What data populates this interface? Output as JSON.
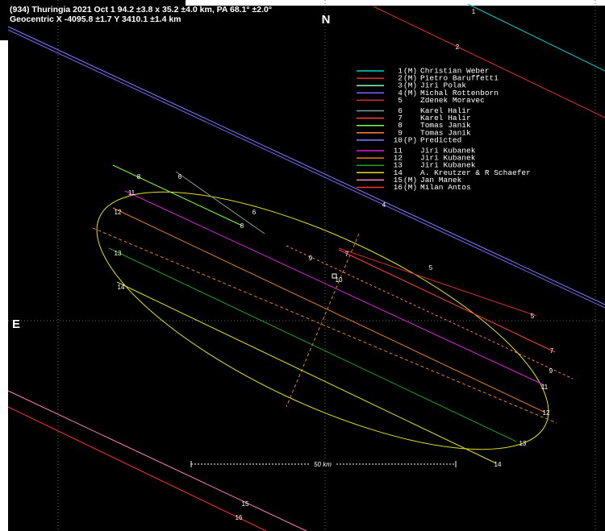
{
  "header": {
    "line1": "(934) Thuringia  2021 Oct 1  94.2 ±3.8 x 35.2 ±4.0 km, PA 68.1° ±2.0°",
    "line2": "Geocentric X  -4095.8 ±1.7  Y 3410.1 ±1.4 km"
  },
  "north": "N",
  "east": "E",
  "scale": "50 km",
  "legend": {
    "entries": [
      {
        "number": "1",
        "flag": "(M)",
        "name": "Christian Weber",
        "color": "#00d0d0"
      },
      {
        "number": "2",
        "flag": "(M)",
        "name": "Pietro Baruffetti",
        "color": "#e03030"
      },
      {
        "number": "3",
        "flag": "(M)",
        "name": "Jiri Polak",
        "color": "#80ffc0"
      },
      {
        "number": "4",
        "flag": "(M)",
        "name": "Michal Rottenborn",
        "color": "#8060ff"
      },
      {
        "number": "5",
        "flag": "",
        "name": "Zdenek Moravec",
        "color": "#d03030"
      },
      {
        "number": "6",
        "flag": "",
        "name": "Karel Halir",
        "color": "#80a0a0"
      },
      {
        "number": "7",
        "flag": "",
        "name": "Karel Halir",
        "color": "#ff4040"
      },
      {
        "number": "8",
        "flag": "",
        "name": "Tomas Janik",
        "color": "#80ff40"
      },
      {
        "number": "9",
        "flag": "",
        "name": "Tomas Janik",
        "color": "#ff8040"
      },
      {
        "number": "10",
        "flag": "(P)",
        "name": "Predicted",
        "color": "#8080ff"
      },
      {
        "number": "11",
        "flag": "",
        "name": "Jiri Kubanek",
        "color": "#e020e0"
      },
      {
        "number": "12",
        "flag": "",
        "name": "Jiri Kubanek",
        "color": "#e08020"
      },
      {
        "number": "13",
        "flag": "",
        "name": "Jiri Kubanek",
        "color": "#20a020"
      },
      {
        "number": "14",
        "flag": "",
        "name": "A. Kreutzer & R Schaefer",
        "color": "#e0e020"
      },
      {
        "number": "15",
        "flag": "(M)",
        "name": "Jan Manek",
        "color": "#ff80c0"
      },
      {
        "number": "16",
        "flag": "(M)",
        "name": "Milan Antos",
        "color": "#ff3030"
      }
    ]
  }
}
